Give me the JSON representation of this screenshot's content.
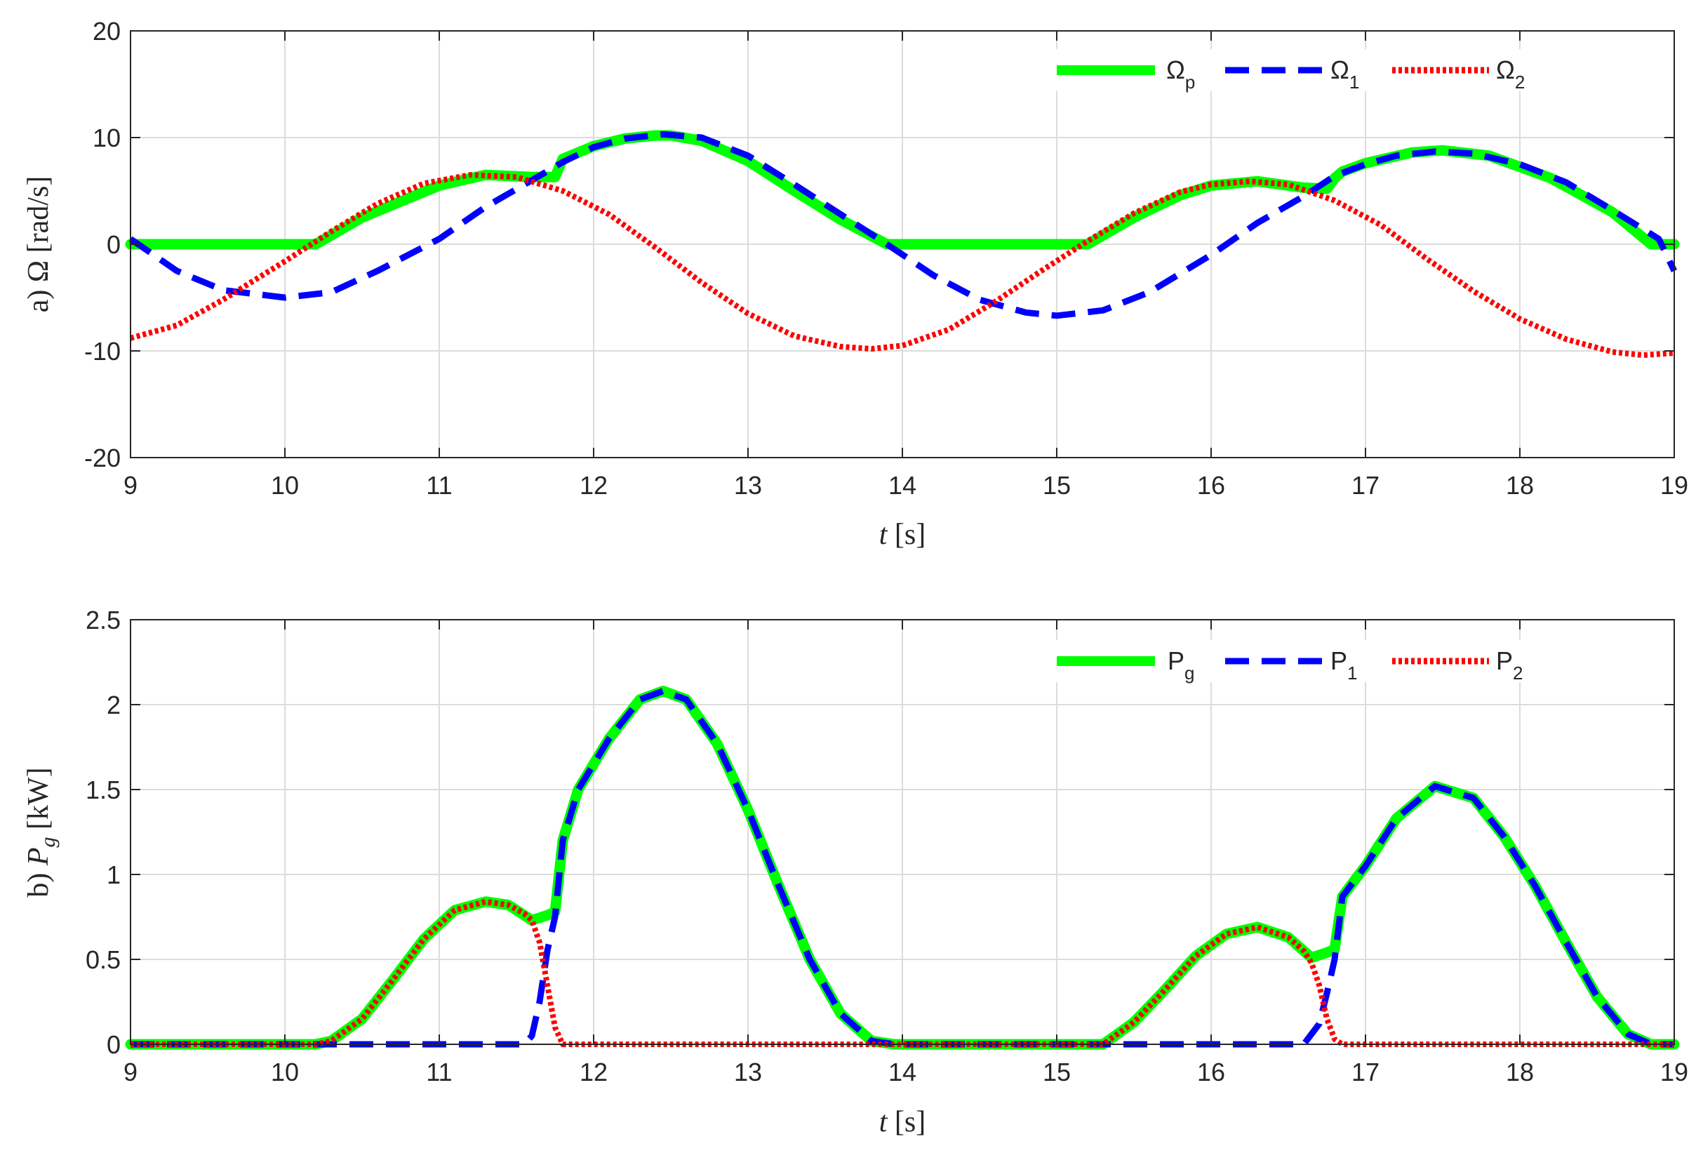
{
  "chart_data": [
    {
      "type": "line",
      "panel_label": "a)",
      "ylabel_symbol": "Ω",
      "ylabel_unit": "[rad/s]",
      "xlabel_var": "t",
      "xlabel_unit": "[s]",
      "xlim": [
        9,
        19
      ],
      "ylim": [
        -20,
        20
      ],
      "xticks": [
        "9",
        "10",
        "11",
        "12",
        "13",
        "14",
        "15",
        "16",
        "17",
        "18",
        "19"
      ],
      "yticks": [
        "20",
        "10",
        "0",
        "-10",
        "-20"
      ],
      "grid": true,
      "legend_position": "top-right",
      "legend_orientation": "horizontal",
      "series": [
        {
          "name": "Ω",
          "sub": "p",
          "color": "#00ff00",
          "style": "solid",
          "x": [
            9.0,
            9.05,
            9.5,
            10.0,
            10.2,
            10.5,
            11.0,
            11.3,
            11.6,
            11.7,
            11.75,
            11.8,
            12.0,
            12.2,
            12.4,
            12.5,
            12.7,
            13.0,
            13.3,
            13.6,
            13.9,
            14.2,
            14.5,
            15.0,
            15.2,
            15.5,
            15.8,
            16.0,
            16.3,
            16.6,
            16.75,
            16.8,
            16.85,
            17.0,
            17.3,
            17.5,
            17.8,
            18.2,
            18.6,
            18.85,
            19.0
          ],
          "y": [
            0.0,
            0.0,
            0.0,
            0.0,
            0.0,
            2.5,
            5.5,
            6.5,
            6.3,
            6.3,
            6.3,
            8.0,
            9.2,
            9.9,
            10.2,
            10.2,
            9.7,
            7.8,
            5.0,
            2.3,
            0.0,
            0.0,
            0.0,
            0.0,
            0.0,
            2.5,
            4.6,
            5.5,
            5.9,
            5.3,
            5.2,
            6.2,
            6.8,
            7.6,
            8.6,
            8.8,
            8.3,
            6.2,
            3.0,
            0.0,
            0.0
          ]
        },
        {
          "name": "Ω",
          "sub": "1",
          "color": "#0000ff",
          "style": "dashed",
          "x": [
            9.0,
            9.3,
            9.6,
            10.0,
            10.3,
            10.6,
            11.0,
            11.3,
            11.6,
            11.8,
            12.0,
            12.2,
            12.45,
            12.7,
            13.0,
            13.3,
            13.6,
            13.9,
            14.2,
            14.5,
            14.8,
            15.0,
            15.3,
            15.6,
            16.0,
            16.3,
            16.6,
            16.8,
            17.0,
            17.2,
            17.45,
            17.7,
            18.0,
            18.3,
            18.6,
            18.9,
            19.0
          ],
          "y": [
            0.5,
            -2.5,
            -4.3,
            -5.0,
            -4.5,
            -2.5,
            0.5,
            3.5,
            6.0,
            7.7,
            9.1,
            9.9,
            10.3,
            10.0,
            8.3,
            5.6,
            2.8,
            0.0,
            -2.9,
            -5.2,
            -6.4,
            -6.7,
            -6.2,
            -4.5,
            -1.0,
            2.0,
            4.5,
            6.4,
            7.5,
            8.3,
            8.7,
            8.5,
            7.5,
            5.8,
            3.2,
            0.5,
            -2.5
          ]
        },
        {
          "name": "Ω",
          "sub": "2",
          "color": "#ff0000",
          "style": "dotted",
          "x": [
            9.0,
            9.3,
            9.6,
            10.0,
            10.3,
            10.6,
            10.9,
            11.2,
            11.5,
            11.8,
            12.1,
            12.4,
            12.7,
            13.0,
            13.3,
            13.6,
            13.8,
            14.0,
            14.3,
            14.6,
            14.9,
            15.2,
            15.5,
            15.8,
            16.0,
            16.25,
            16.5,
            16.8,
            17.1,
            17.4,
            17.7,
            18.0,
            18.3,
            18.6,
            18.8,
            19.0
          ],
          "y": [
            -8.8,
            -7.6,
            -5.2,
            -1.6,
            1.2,
            3.8,
            5.7,
            6.5,
            6.3,
            5.0,
            2.8,
            -0.3,
            -3.6,
            -6.5,
            -8.6,
            -9.6,
            -9.8,
            -9.5,
            -8.0,
            -5.4,
            -2.5,
            0.3,
            2.9,
            4.9,
            5.6,
            5.9,
            5.6,
            4.1,
            1.8,
            -1.4,
            -4.4,
            -7.0,
            -8.9,
            -10.1,
            -10.4,
            -10.2
          ]
        }
      ]
    },
    {
      "type": "line",
      "panel_label": "b)",
      "ylabel_symbol": "P",
      "ylabel_sub": "g",
      "ylabel_unit": "[kW]",
      "xlabel_var": "t",
      "xlabel_unit": "[s]",
      "xlim": [
        9,
        19
      ],
      "ylim": [
        0,
        2.5
      ],
      "xticks": [
        "9",
        "10",
        "11",
        "12",
        "13",
        "14",
        "15",
        "16",
        "17",
        "18",
        "19"
      ],
      "yticks": [
        "2.5",
        "2",
        "1.5",
        "1",
        "0.5",
        "0"
      ],
      "grid": true,
      "legend_position": "top-right",
      "legend_orientation": "horizontal",
      "series": [
        {
          "name": "P",
          "sub": "g",
          "color": "#00ff00",
          "style": "solid",
          "x": [
            9.0,
            10.0,
            10.2,
            10.3,
            10.5,
            10.7,
            10.9,
            11.1,
            11.3,
            11.45,
            11.6,
            11.7,
            11.75,
            11.8,
            11.9,
            12.1,
            12.3,
            12.45,
            12.6,
            12.8,
            13.0,
            13.2,
            13.4,
            13.6,
            13.8,
            13.95,
            14.5,
            15.0,
            15.3,
            15.5,
            15.7,
            15.9,
            16.1,
            16.3,
            16.5,
            16.65,
            16.75,
            16.8,
            16.85,
            17.0,
            17.2,
            17.45,
            17.7,
            17.9,
            18.1,
            18.3,
            18.5,
            18.7,
            18.85,
            19.0
          ],
          "y": [
            0.0,
            0.0,
            0.0,
            0.02,
            0.15,
            0.38,
            0.62,
            0.79,
            0.84,
            0.82,
            0.73,
            0.76,
            0.78,
            1.2,
            1.5,
            1.8,
            2.03,
            2.08,
            2.03,
            1.77,
            1.38,
            0.93,
            0.5,
            0.18,
            0.02,
            0.0,
            0.0,
            0.0,
            0.0,
            0.13,
            0.32,
            0.52,
            0.65,
            0.69,
            0.63,
            0.51,
            0.54,
            0.56,
            0.87,
            1.05,
            1.33,
            1.52,
            1.45,
            1.22,
            0.93,
            0.6,
            0.28,
            0.06,
            0.0,
            0.0
          ]
        },
        {
          "name": "P",
          "sub": "1",
          "color": "#0000ff",
          "style": "dashed",
          "x": [
            9.0,
            11.55,
            11.6,
            11.65,
            11.7,
            11.75,
            11.8,
            11.9,
            12.1,
            12.3,
            12.45,
            12.6,
            12.8,
            13.0,
            13.2,
            13.4,
            13.6,
            13.8,
            13.95,
            14.5,
            15.0,
            16.6,
            16.7,
            16.75,
            16.8,
            16.85,
            17.0,
            17.2,
            17.45,
            17.7,
            17.9,
            18.1,
            18.3,
            18.5,
            18.7,
            18.85,
            19.0
          ],
          "y": [
            0.0,
            0.0,
            0.05,
            0.25,
            0.55,
            0.75,
            1.2,
            1.5,
            1.8,
            2.03,
            2.08,
            2.03,
            1.77,
            1.38,
            0.93,
            0.5,
            0.18,
            0.02,
            0.0,
            0.0,
            0.0,
            0.0,
            0.12,
            0.3,
            0.5,
            0.87,
            1.05,
            1.33,
            1.52,
            1.45,
            1.22,
            0.93,
            0.6,
            0.28,
            0.06,
            0.0,
            0.0
          ]
        },
        {
          "name": "P",
          "sub": "2",
          "color": "#ff0000",
          "style": "dotted",
          "x": [
            9.0,
            10.0,
            10.2,
            10.3,
            10.5,
            10.7,
            10.9,
            11.1,
            11.3,
            11.45,
            11.55,
            11.6,
            11.65,
            11.7,
            11.75,
            11.8,
            12.5,
            14.0,
            15.0,
            15.3,
            15.5,
            15.7,
            15.9,
            16.1,
            16.3,
            16.5,
            16.6,
            16.65,
            16.7,
            16.75,
            16.8,
            16.85,
            17.5,
            19.0
          ],
          "y": [
            0.0,
            0.0,
            0.0,
            0.02,
            0.15,
            0.38,
            0.62,
            0.79,
            0.84,
            0.82,
            0.77,
            0.73,
            0.6,
            0.35,
            0.1,
            0.0,
            0.0,
            0.0,
            0.0,
            0.0,
            0.13,
            0.32,
            0.52,
            0.65,
            0.69,
            0.63,
            0.55,
            0.48,
            0.35,
            0.15,
            0.03,
            0.0,
            0.0,
            0.0
          ]
        }
      ]
    }
  ]
}
